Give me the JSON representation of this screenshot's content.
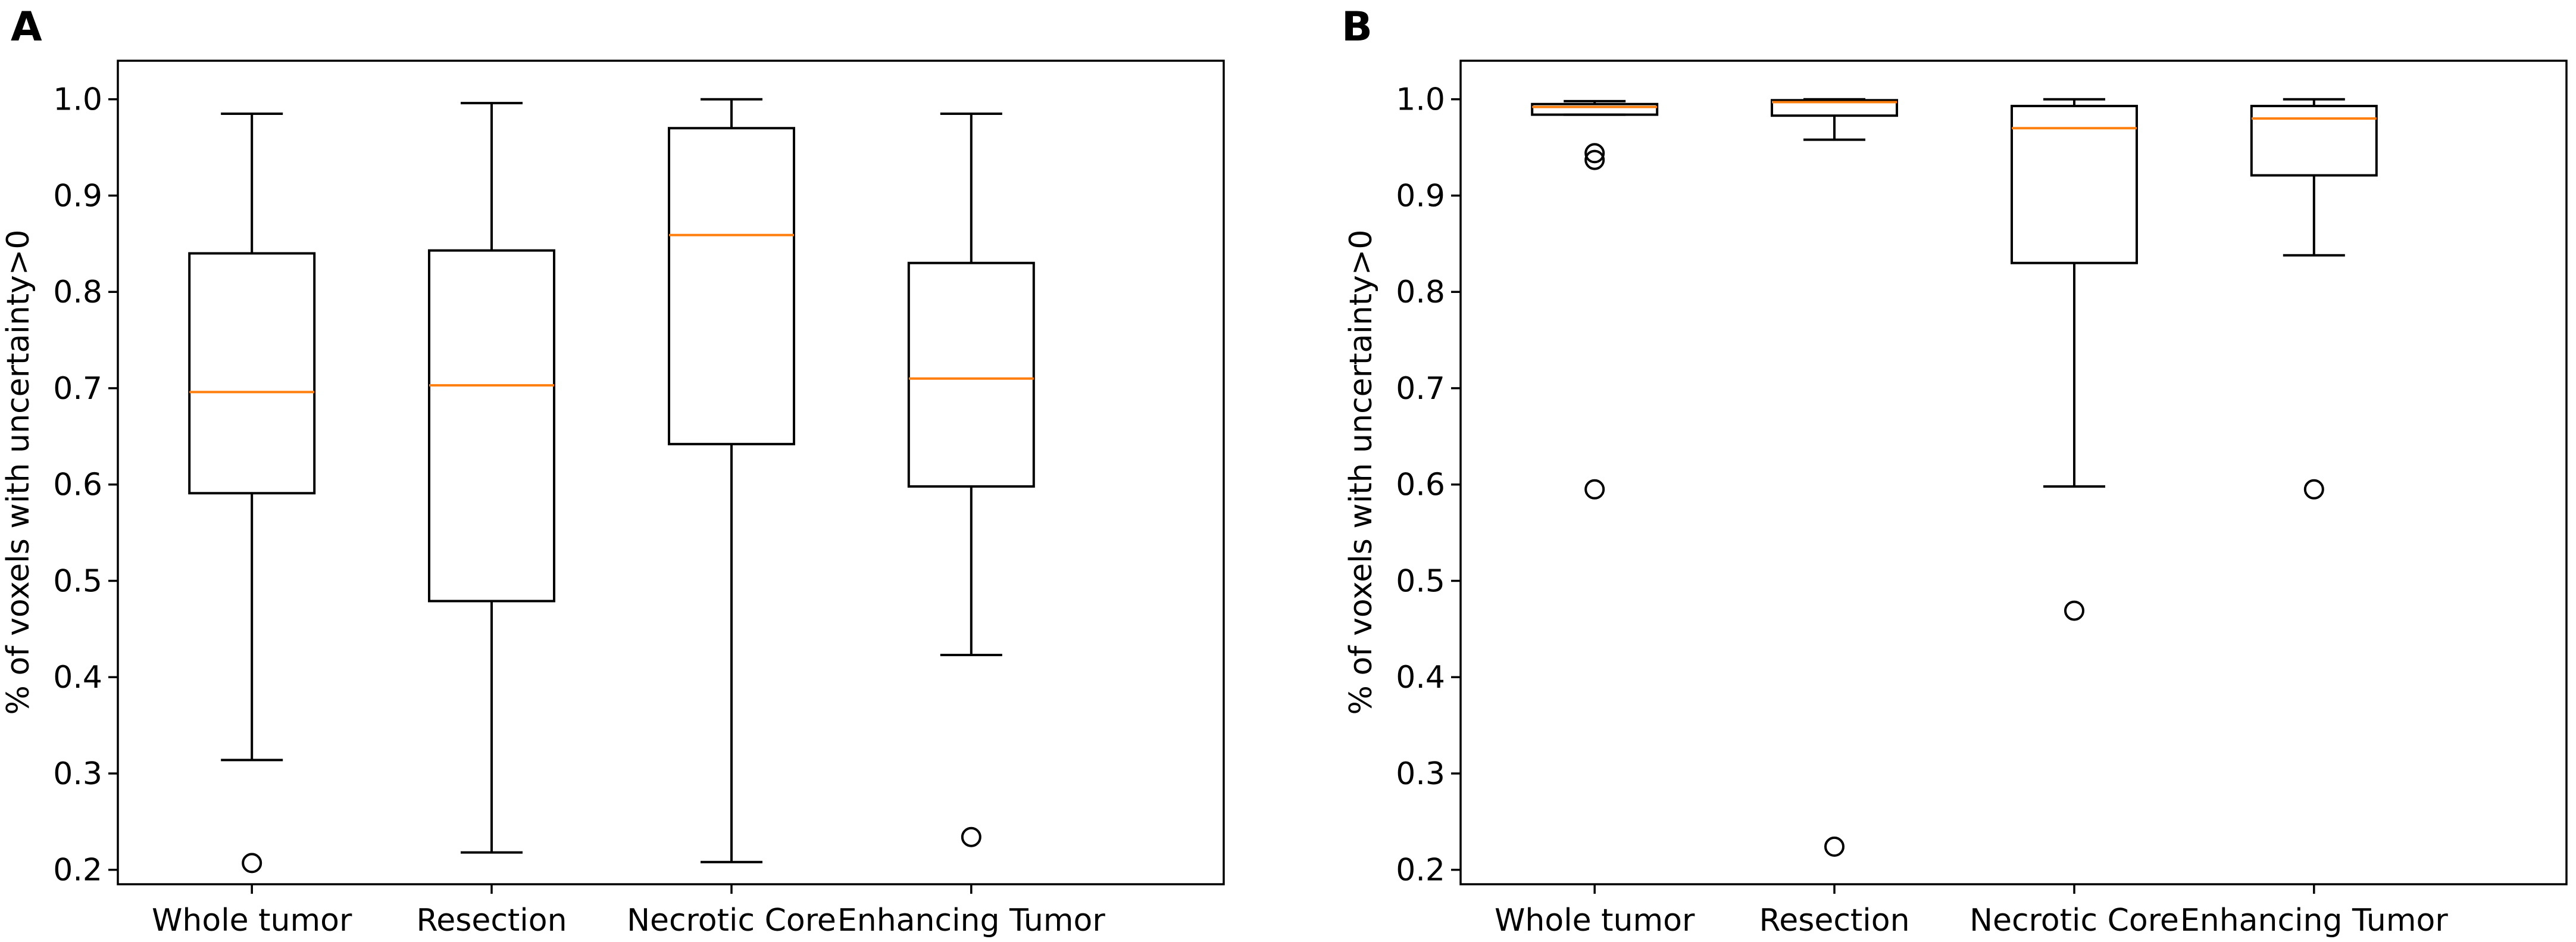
{
  "chart_data": [
    {
      "panel": "A",
      "type": "box",
      "title": "",
      "xlabel": "",
      "ylabel": "% of voxels with uncertainty>0",
      "ylim": [
        0.185,
        1.04
      ],
      "yticks": [
        0.2,
        0.3,
        0.4,
        0.5,
        0.6,
        0.7,
        0.8,
        0.9,
        1.0
      ],
      "ytick_labels": [
        "0.2",
        "0.3",
        "0.4",
        "0.5",
        "0.6",
        "0.7",
        "0.8",
        "0.9",
        "1.0"
      ],
      "categories": [
        "Whole tumor",
        "Resection",
        "Necrotic Core",
        "Enhancing Tumor"
      ],
      "boxes": [
        {
          "whislo": 0.314,
          "q1": 0.591,
          "median": 0.696,
          "q3": 0.84,
          "whishi": 0.985,
          "fliers": [
            0.207
          ]
        },
        {
          "whislo": 0.218,
          "q1": 0.479,
          "median": 0.703,
          "q3": 0.843,
          "whishi": 0.996,
          "fliers": []
        },
        {
          "whislo": 0.208,
          "q1": 0.642,
          "median": 0.859,
          "q3": 0.97,
          "whishi": 1.0,
          "fliers": []
        },
        {
          "whislo": 0.423,
          "q1": 0.598,
          "median": 0.71,
          "q3": 0.83,
          "whishi": 0.985,
          "fliers": [
            0.234
          ]
        }
      ]
    },
    {
      "panel": "B",
      "type": "box",
      "title": "",
      "xlabel": "",
      "ylabel": "% of voxels with uncertainty>0",
      "ylim": [
        0.185,
        1.04
      ],
      "yticks": [
        0.2,
        0.3,
        0.4,
        0.5,
        0.6,
        0.7,
        0.8,
        0.9,
        1.0
      ],
      "ytick_labels": [
        "0.2",
        "0.3",
        "0.4",
        "0.5",
        "0.6",
        "0.7",
        "0.8",
        "0.9",
        "1.0"
      ],
      "categories": [
        "Whole tumor",
        "Resection",
        "Necrotic Core",
        "Enhancing Tumor"
      ],
      "boxes": [
        {
          "whislo": 0.984,
          "q1": 0.984,
          "median": 0.992,
          "q3": 0.995,
          "whishi": 0.998,
          "fliers": [
            0.595,
            0.937,
            0.944
          ]
        },
        {
          "whislo": 0.958,
          "q1": 0.983,
          "median": 0.997,
          "q3": 0.999,
          "whishi": 1.0,
          "fliers": [
            0.224
          ]
        },
        {
          "whislo": 0.598,
          "q1": 0.83,
          "median": 0.97,
          "q3": 0.993,
          "whishi": 1.0,
          "fliers": [
            0.469
          ]
        },
        {
          "whislo": 0.838,
          "q1": 0.921,
          "median": 0.98,
          "q3": 0.993,
          "whishi": 1.0,
          "fliers": [
            0.595
          ]
        }
      ]
    }
  ]
}
